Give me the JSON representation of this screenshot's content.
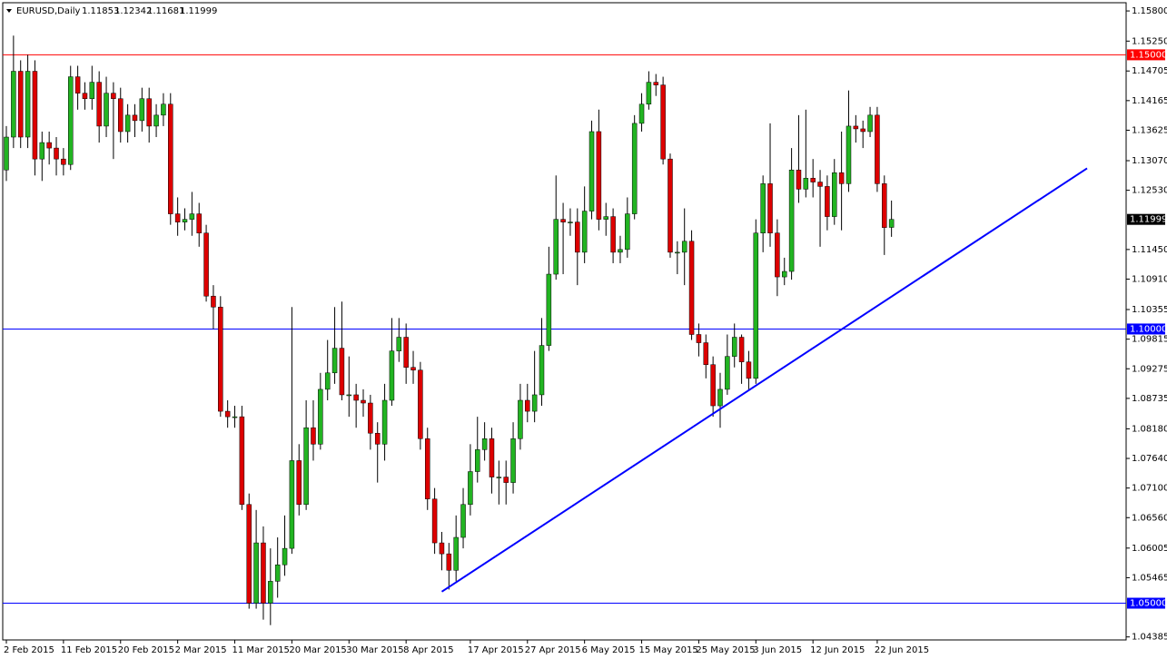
{
  "chart_data": {
    "type": "candlestick",
    "symbol": "EURUSD,Daily",
    "ylim": [
      1.0433,
      1.1595
    ],
    "yticks": [
      {
        "value": 1.158,
        "label": "1.15800"
      },
      {
        "value": 1.1525,
        "label": "1.15250"
      },
      {
        "value": 1.14705,
        "label": "1.14705"
      },
      {
        "value": 1.14165,
        "label": "1.14165"
      },
      {
        "value": 1.13625,
        "label": "1.13625"
      },
      {
        "value": 1.1307,
        "label": "1.13070"
      },
      {
        "value": 1.1253,
        "label": "1.12530"
      },
      {
        "value": 1.1145,
        "label": "1.11450"
      },
      {
        "value": 1.1091,
        "label": "1.10910"
      },
      {
        "value": 1.10355,
        "label": "1.10355"
      },
      {
        "value": 1.09815,
        "label": "1.09815"
      },
      {
        "value": 1.09275,
        "label": "1.09275"
      },
      {
        "value": 1.08735,
        "label": "1.08735"
      },
      {
        "value": 1.0818,
        "label": "1.08180"
      },
      {
        "value": 1.0764,
        "label": "1.07640"
      },
      {
        "value": 1.071,
        "label": "1.07100"
      },
      {
        "value": 1.0656,
        "label": "1.06560"
      },
      {
        "value": 1.06005,
        "label": "1.06005"
      },
      {
        "value": 1.05465,
        "label": "1.05465"
      },
      {
        "value": 1.04385,
        "label": "1.04385"
      }
    ],
    "levels": [
      {
        "value": 1.15,
        "label": "1.15000",
        "color": "#ff0000"
      },
      {
        "value": 1.1,
        "label": "1.10000",
        "color": "#0000ff"
      },
      {
        "value": 1.05,
        "label": "1.05000",
        "color": "#0000ff"
      }
    ],
    "current_price": {
      "value": 1.11999,
      "label": "1.11999"
    },
    "trendline": {
      "start": [
        61,
        1.0521
      ],
      "end": [
        151.4,
        1.1293
      ],
      "color": "#0000ff"
    },
    "up_color": "#22b422",
    "down_color": "#dd0000",
    "categories": [
      "2 Feb 2015",
      null,
      null,
      null,
      null,
      null,
      null,
      null,
      "11 Feb 2015",
      null,
      null,
      null,
      null,
      null,
      null,
      null,
      "20 Feb 2015",
      null,
      null,
      null,
      null,
      null,
      null,
      null,
      "2 Mar 2015",
      null,
      null,
      null,
      null,
      null,
      null,
      null,
      "11 Mar 2015",
      null,
      null,
      null,
      null,
      null,
      null,
      null,
      "20 Mar 2015",
      null,
      null,
      null,
      null,
      null,
      null,
      null,
      "30 Mar 2015",
      null,
      null,
      null,
      null,
      null,
      null,
      null,
      "8 Apr 2015",
      null,
      null,
      null,
      null,
      null,
      null,
      null,
      null,
      "17 Apr 2015",
      null,
      null,
      null,
      null,
      null,
      null,
      null,
      "27 Apr 2015",
      null,
      null,
      null,
      null,
      null,
      null,
      null,
      "6 May 2015",
      null,
      null,
      null,
      null,
      null,
      null,
      null,
      "15 May 2015",
      null,
      null,
      null,
      null,
      null,
      null,
      null,
      "25 May 2015",
      null,
      null,
      null,
      null,
      null,
      null,
      null,
      "3 Jun 2015",
      null,
      null,
      null,
      null,
      null,
      null,
      null,
      "12 Jun 2015",
      null,
      null,
      null,
      null,
      null,
      null,
      null,
      null,
      "22 Jun 2015",
      null,
      null
    ],
    "ohlc": [
      [
        1.129,
        1.137,
        1.127,
        1.135
      ],
      [
        1.135,
        1.1535,
        1.133,
        1.147
      ],
      [
        1.147,
        1.149,
        1.133,
        1.135
      ],
      [
        1.135,
        1.15,
        1.133,
        1.147
      ],
      [
        1.147,
        1.149,
        1.128,
        1.131
      ],
      [
        1.131,
        1.136,
        1.127,
        1.134
      ],
      [
        1.134,
        1.136,
        1.13,
        1.133
      ],
      [
        1.133,
        1.135,
        1.128,
        1.131
      ],
      [
        1.131,
        1.133,
        1.128,
        1.13
      ],
      [
        1.13,
        1.148,
        1.129,
        1.146
      ],
      [
        1.146,
        1.148,
        1.14,
        1.143
      ],
      [
        1.143,
        1.145,
        1.14,
        1.142
      ],
      [
        1.142,
        1.148,
        1.14,
        1.145
      ],
      [
        1.145,
        1.147,
        1.134,
        1.137
      ],
      [
        1.137,
        1.146,
        1.135,
        1.143
      ],
      [
        1.143,
        1.145,
        1.131,
        1.142
      ],
      [
        1.142,
        1.144,
        1.134,
        1.136
      ],
      [
        1.136,
        1.141,
        1.134,
        1.139
      ],
      [
        1.139,
        1.141,
        1.135,
        1.138
      ],
      [
        1.138,
        1.144,
        1.136,
        1.142
      ],
      [
        1.142,
        1.144,
        1.134,
        1.137
      ],
      [
        1.137,
        1.141,
        1.135,
        1.139
      ],
      [
        1.139,
        1.143,
        1.137,
        1.141
      ],
      [
        1.141,
        1.143,
        1.119,
        1.121
      ],
      [
        1.121,
        1.124,
        1.117,
        1.1195
      ],
      [
        1.1195,
        1.122,
        1.118,
        1.12
      ],
      [
        1.12,
        1.125,
        1.117,
        1.121
      ],
      [
        1.121,
        1.123,
        1.115,
        1.1175
      ],
      [
        1.1175,
        1.119,
        1.105,
        1.106
      ],
      [
        1.106,
        1.108,
        1.1,
        1.104
      ],
      [
        1.104,
        1.106,
        1.084,
        1.085
      ],
      [
        1.085,
        1.087,
        1.082,
        1.084
      ],
      [
        1.084,
        1.086,
        1.082,
        1.084
      ],
      [
        1.084,
        1.086,
        1.067,
        1.068
      ],
      [
        1.068,
        1.07,
        1.049,
        1.05
      ],
      [
        1.05,
        1.067,
        1.049,
        1.061
      ],
      [
        1.061,
        1.064,
        1.047,
        1.05
      ],
      [
        1.05,
        1.06,
        1.046,
        1.054
      ],
      [
        1.054,
        1.062,
        1.051,
        1.057
      ],
      [
        1.057,
        1.066,
        1.055,
        1.06
      ],
      [
        1.06,
        1.104,
        1.059,
        1.076
      ],
      [
        1.076,
        1.079,
        1.066,
        1.068
      ],
      [
        1.068,
        1.087,
        1.067,
        1.082
      ],
      [
        1.082,
        1.087,
        1.076,
        1.079
      ],
      [
        1.079,
        1.092,
        1.078,
        1.089
      ],
      [
        1.089,
        1.098,
        1.087,
        1.092
      ],
      [
        1.092,
        1.104,
        1.09,
        1.0965
      ],
      [
        1.0965,
        1.105,
        1.087,
        1.088
      ],
      [
        1.088,
        1.095,
        1.084,
        1.088
      ],
      [
        1.088,
        1.09,
        1.082,
        1.087
      ],
      [
        1.087,
        1.089,
        1.084,
        1.0865
      ],
      [
        1.0865,
        1.088,
        1.078,
        1.081
      ],
      [
        1.081,
        1.083,
        1.072,
        1.079
      ],
      [
        1.079,
        1.09,
        1.076,
        1.087
      ],
      [
        1.087,
        1.102,
        1.086,
        1.096
      ],
      [
        1.096,
        1.102,
        1.094,
        1.0985
      ],
      [
        1.0985,
        1.101,
        1.09,
        1.093
      ],
      [
        1.093,
        1.096,
        1.09,
        1.0925
      ],
      [
        1.0925,
        1.094,
        1.078,
        1.08
      ],
      [
        1.08,
        1.082,
        1.067,
        1.069
      ],
      [
        1.069,
        1.071,
        1.059,
        1.061
      ],
      [
        1.061,
        1.063,
        1.056,
        1.059
      ],
      [
        1.059,
        1.061,
        1.0525,
        1.056
      ],
      [
        1.056,
        1.066,
        1.054,
        1.062
      ],
      [
        1.062,
        1.071,
        1.06,
        1.068
      ],
      [
        1.068,
        1.079,
        1.066,
        1.074
      ],
      [
        1.074,
        1.084,
        1.072,
        1.078
      ],
      [
        1.078,
        1.083,
        1.076,
        1.08
      ],
      [
        1.08,
        1.082,
        1.07,
        1.073
      ],
      [
        1.073,
        1.076,
        1.068,
        1.073
      ],
      [
        1.073,
        1.076,
        1.068,
        1.072
      ],
      [
        1.072,
        1.083,
        1.07,
        1.08
      ],
      [
        1.08,
        1.09,
        1.078,
        1.087
      ],
      [
        1.087,
        1.09,
        1.083,
        1.085
      ],
      [
        1.085,
        1.096,
        1.083,
        1.088
      ],
      [
        1.088,
        1.102,
        1.086,
        1.097
      ],
      [
        1.097,
        1.115,
        1.096,
        1.11
      ],
      [
        1.11,
        1.128,
        1.109,
        1.12
      ],
      [
        1.12,
        1.123,
        1.11,
        1.1195
      ],
      [
        1.1195,
        1.122,
        1.117,
        1.1195
      ],
      [
        1.1195,
        1.122,
        1.108,
        1.114
      ],
      [
        1.114,
        1.126,
        1.112,
        1.1215
      ],
      [
        1.1215,
        1.138,
        1.12,
        1.136
      ],
      [
        1.136,
        1.14,
        1.118,
        1.12
      ],
      [
        1.12,
        1.123,
        1.117,
        1.1205
      ],
      [
        1.1205,
        1.122,
        1.112,
        1.114
      ],
      [
        1.114,
        1.117,
        1.112,
        1.1145
      ],
      [
        1.1145,
        1.124,
        1.113,
        1.121
      ],
      [
        1.121,
        1.139,
        1.12,
        1.1375
      ],
      [
        1.1375,
        1.143,
        1.136,
        1.141
      ],
      [
        1.141,
        1.147,
        1.14,
        1.145
      ],
      [
        1.145,
        1.1465,
        1.1425,
        1.1445
      ],
      [
        1.1445,
        1.146,
        1.13,
        1.131
      ],
      [
        1.131,
        1.132,
        1.113,
        1.114
      ],
      [
        1.114,
        1.116,
        1.11,
        1.114
      ],
      [
        1.114,
        1.122,
        1.108,
        1.116
      ],
      [
        1.116,
        1.118,
        1.098,
        1.099
      ],
      [
        1.099,
        1.101,
        1.095,
        1.0975
      ],
      [
        1.0975,
        1.099,
        1.091,
        1.0935
      ],
      [
        1.0935,
        1.095,
        1.084,
        1.086
      ],
      [
        1.086,
        1.092,
        1.082,
        1.089
      ],
      [
        1.089,
        1.099,
        1.088,
        1.095
      ],
      [
        1.095,
        1.101,
        1.093,
        1.0985
      ],
      [
        1.0985,
        1.099,
        1.09,
        1.094
      ],
      [
        1.094,
        1.096,
        1.089,
        1.091
      ],
      [
        1.091,
        1.12,
        1.09,
        1.1175
      ],
      [
        1.1175,
        1.128,
        1.114,
        1.1265
      ],
      [
        1.1265,
        1.1375,
        1.115,
        1.1175
      ],
      [
        1.1175,
        1.12,
        1.106,
        1.1095
      ],
      [
        1.1095,
        1.113,
        1.108,
        1.1105
      ],
      [
        1.1105,
        1.133,
        1.109,
        1.129
      ],
      [
        1.129,
        1.139,
        1.123,
        1.1255
      ],
      [
        1.1255,
        1.14,
        1.124,
        1.1275
      ],
      [
        1.1275,
        1.131,
        1.124,
        1.1268
      ],
      [
        1.1268,
        1.129,
        1.115,
        1.126
      ],
      [
        1.126,
        1.128,
        1.118,
        1.1205
      ],
      [
        1.1205,
        1.131,
        1.119,
        1.1285
      ],
      [
        1.1285,
        1.136,
        1.118,
        1.1265
      ],
      [
        1.1265,
        1.1435,
        1.125,
        1.137
      ],
      [
        1.137,
        1.139,
        1.134,
        1.1365
      ],
      [
        1.1365,
        1.138,
        1.133,
        1.136
      ],
      [
        1.136,
        1.1405,
        1.135,
        1.139
      ],
      [
        1.139,
        1.1405,
        1.125,
        1.1265
      ],
      [
        1.1265,
        1.128,
        1.1135,
        1.1185
      ],
      [
        1.11853,
        1.12342,
        1.11681,
        1.11999
      ]
    ]
  }
}
